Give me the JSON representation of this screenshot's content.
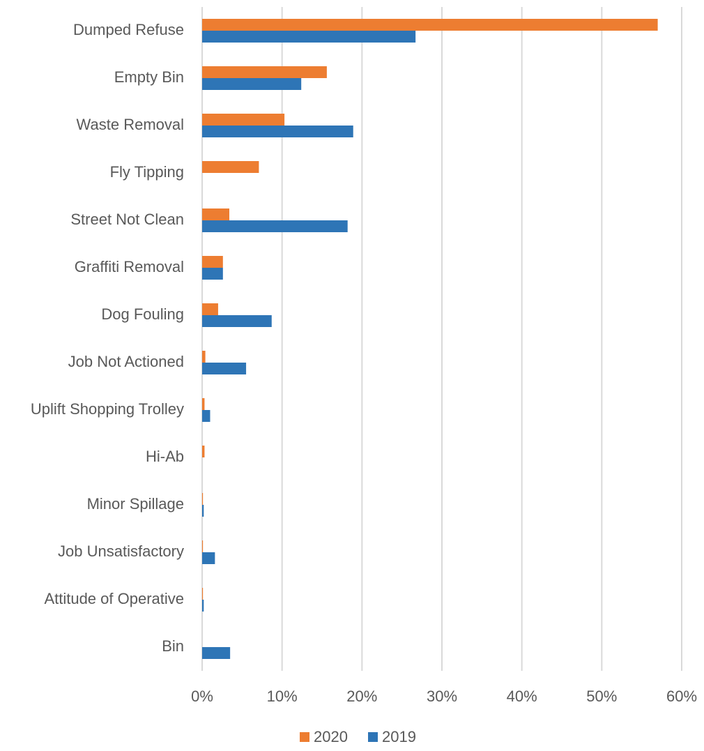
{
  "chart_data": {
    "type": "hbar",
    "categories": [
      "Dumped Refuse",
      "Empty Bin",
      "Waste Removal",
      "Fly Tipping",
      "Street Not Clean",
      "Graffiti Removal",
      "Dog Fouling",
      "Job Not Actioned",
      "Uplift Shopping Trolley",
      "Hi-Ab",
      "Minor Spillage",
      "Job Unsatisfactory",
      "Attitude of Operative",
      "Bin"
    ],
    "series": [
      {
        "name": "2020",
        "color": "#ed7d31",
        "values": [
          57.0,
          15.6,
          10.3,
          7.1,
          3.4,
          2.6,
          2.0,
          0.4,
          0.3,
          0.3,
          0.1,
          0.1,
          0.1,
          0
        ]
      },
      {
        "name": "2019",
        "color": "#2e75b6",
        "values": [
          26.7,
          12.4,
          18.9,
          0,
          18.2,
          2.6,
          8.7,
          5.5,
          1.0,
          0,
          0.2,
          1.6,
          0.2,
          3.5
        ]
      }
    ],
    "xlim": [
      0,
      60
    ],
    "xticks": [
      {
        "value": 0,
        "label": "0%"
      },
      {
        "value": 10,
        "label": "10%"
      },
      {
        "value": 20,
        "label": "20%"
      },
      {
        "value": 30,
        "label": "30%"
      },
      {
        "value": 40,
        "label": "40%"
      },
      {
        "value": 50,
        "label": "50%"
      },
      {
        "value": 60,
        "label": "60%"
      }
    ],
    "grid": true,
    "legend": "bottom"
  }
}
